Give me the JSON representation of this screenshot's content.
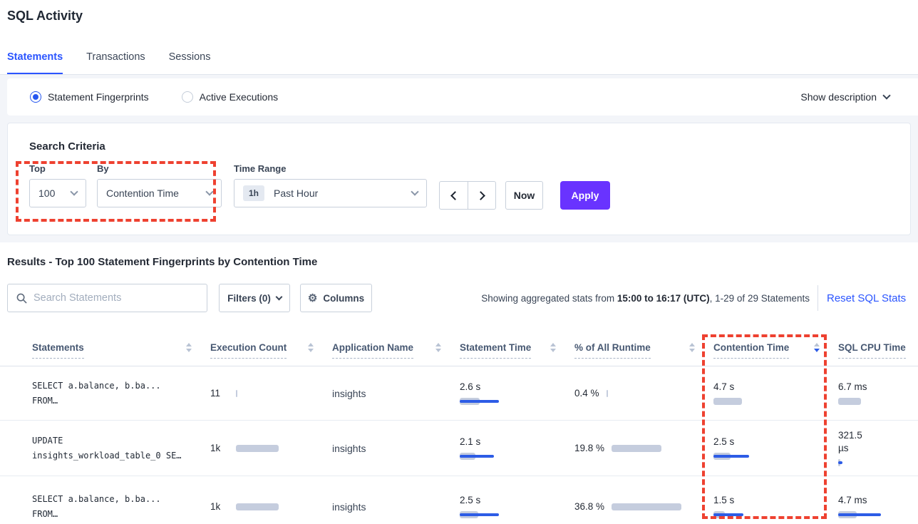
{
  "page": {
    "title": "SQL Activity"
  },
  "tabs": [
    {
      "label": "Statements",
      "active": true
    },
    {
      "label": "Transactions",
      "active": false
    },
    {
      "label": "Sessions",
      "active": false
    }
  ],
  "view_toggle": {
    "options": [
      {
        "label": "Statement Fingerprints",
        "selected": true
      },
      {
        "label": "Active Executions",
        "selected": false
      }
    ],
    "show_description_label": "Show description"
  },
  "search_criteria": {
    "heading": "Search Criteria",
    "top": {
      "label": "Top",
      "value": "100"
    },
    "by": {
      "label": "By",
      "value": "Contention Time"
    },
    "time_range": {
      "label": "Time Range",
      "badge": "1h",
      "value": "Past Hour"
    },
    "now_label": "Now",
    "apply_label": "Apply"
  },
  "results": {
    "heading": "Results - Top 100 Statement Fingerprints by Contention Time",
    "search_placeholder": "Search Statements",
    "filters_label": "Filters (0)",
    "columns_label": "Columns",
    "stats_prefix": "Showing aggregated stats from ",
    "stats_bold": "15:00 to 16:17 (UTC)",
    "stats_suffix": ", 1-29 of 29 Statements",
    "reset_label": "Reset SQL Stats"
  },
  "table": {
    "columns": [
      {
        "label": "Statements",
        "sort": "none"
      },
      {
        "label": "Execution Count",
        "sort": "none"
      },
      {
        "label": "Application Name",
        "sort": "none"
      },
      {
        "label": "Statement Time",
        "sort": "none"
      },
      {
        "label": "% of All Runtime",
        "sort": "none"
      },
      {
        "label": "Contention Time",
        "sort": "desc"
      },
      {
        "label": "SQL CPU Time",
        "sort": "none"
      }
    ],
    "rows": [
      {
        "statement": {
          "line1": "SELECT a.balance, b.ba...",
          "line2": "FROM…"
        },
        "execution_count": {
          "value": "11",
          "bar_gray": 2,
          "bar_blue": 0
        },
        "application_name": "insights",
        "statement_time": {
          "value": "2.6 s",
          "bar_gray": 28,
          "bar_blue": 55
        },
        "pct_runtime": {
          "value": "0.4 %",
          "bar_gray": 2,
          "bar_blue": 0
        },
        "contention_time": {
          "value": "4.7 s",
          "bar_gray": 40,
          "bar_blue": 0
        },
        "sql_cpu_time": {
          "value": "6.7 ms",
          "bar_gray": 32,
          "bar_blue": 0
        }
      },
      {
        "statement": {
          "line1": "UPDATE",
          "line2": "insights_workload_table_0 SE…"
        },
        "execution_count": {
          "value": "1k",
          "bar_gray": 60,
          "bar_blue": 0
        },
        "application_name": "insights",
        "statement_time": {
          "value": "2.1 s",
          "bar_gray": 22,
          "bar_blue": 48
        },
        "pct_runtime": {
          "value": "19.8 %",
          "bar_gray": 70,
          "bar_blue": 0
        },
        "contention_time": {
          "value": "2.5 s",
          "bar_gray": 24,
          "bar_blue": 50
        },
        "sql_cpu_time": {
          "value": "321.5 µs",
          "bar_gray": 3,
          "bar_blue": 6
        }
      },
      {
        "statement": {
          "line1": "SELECT a.balance, b.ba...",
          "line2": "FROM…"
        },
        "execution_count": {
          "value": "1k",
          "bar_gray": 60,
          "bar_blue": 0
        },
        "application_name": "insights",
        "statement_time": {
          "value": "2.5 s",
          "bar_gray": 26,
          "bar_blue": 55
        },
        "pct_runtime": {
          "value": "36.8 %",
          "bar_gray": 98,
          "bar_blue": 0
        },
        "contention_time": {
          "value": "1.5 s",
          "bar_gray": 16,
          "bar_blue": 42
        },
        "sql_cpu_time": {
          "value": "4.7 ms",
          "bar_gray": 26,
          "bar_blue": 60
        }
      }
    ]
  },
  "annotations": {
    "color": "#ee4130",
    "style": "dashed-box"
  },
  "colors": {
    "accent_blue": "#2b55ff",
    "apply_purple": "#6933ff",
    "bar_gray": "#c5cdde",
    "bar_blue": "#2d5ce6",
    "annotation_red": "#ee4130"
  }
}
